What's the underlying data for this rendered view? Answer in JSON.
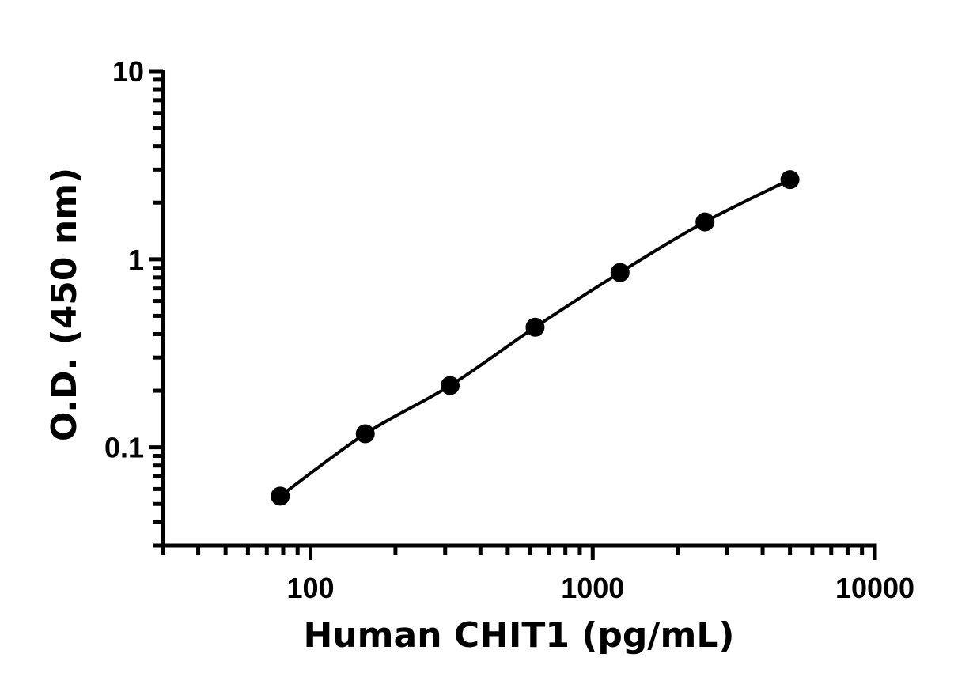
{
  "chart_data": {
    "type": "scatter",
    "xlabel": "Human CHIT1 (pg/mL)",
    "ylabel": "O.D. (450 nm)",
    "x_scale": "log",
    "y_scale": "log",
    "xlim": [
      30,
      10000
    ],
    "ylim": [
      0.03,
      10
    ],
    "x_ticks": [
      "100",
      "1000",
      "10000"
    ],
    "y_ticks": [
      "0.1",
      "1",
      "10"
    ],
    "grid": false,
    "fit_curve": true,
    "series": [
      {
        "x": [
          78.1,
          156.3,
          312.5,
          625,
          1250,
          2500,
          5000
        ],
        "y": [
          0.055,
          0.118,
          0.213,
          0.435,
          0.85,
          1.58,
          2.65
        ]
      }
    ]
  }
}
